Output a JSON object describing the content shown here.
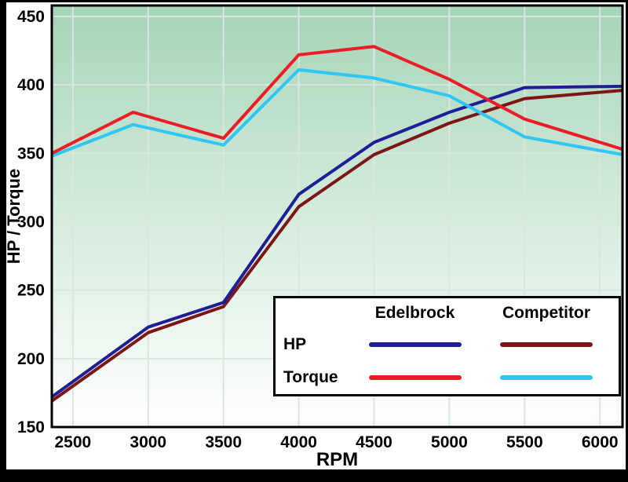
{
  "chart_data": {
    "type": "line",
    "title": "",
    "xlabel": "RPM",
    "ylabel": "HP / Torque",
    "xlim": [
      2360,
      6150
    ],
    "ylim": [
      150,
      458
    ],
    "x_ticks": [
      2500,
      3000,
      3500,
      4000,
      4500,
      5000,
      5500,
      6000
    ],
    "y_ticks": [
      150,
      200,
      250,
      300,
      350,
      400,
      450
    ],
    "grid": true,
    "legend": {
      "position": "bottom-right",
      "columns": [
        "Edelbrock",
        "Competitor"
      ],
      "rows": [
        "HP",
        "Torque"
      ]
    },
    "colors": {
      "hp_edelbrock": "#1e1e96",
      "hp_competitor": "#7b1518",
      "torque_edelbrock": "#ea1c26",
      "torque_competitor": "#2fc6f3",
      "grid": "#d9e7dc",
      "plot_border": "#000000",
      "background_top": "#a5d4b7",
      "background_mid": "#d9eee0",
      "background_bottom": "#ffffff",
      "matte": "#000000",
      "text": "#000000"
    },
    "series": [
      {
        "name": "HP Competitor",
        "metric": "HP",
        "brand": "Competitor",
        "color": "#7b1518",
        "points": [
          [
            2360,
            169
          ],
          [
            3000,
            219
          ],
          [
            3500,
            238
          ],
          [
            4000,
            311
          ],
          [
            4500,
            349
          ],
          [
            5000,
            372
          ],
          [
            5500,
            390
          ],
          [
            6150,
            396
          ]
        ]
      },
      {
        "name": "HP Edelbrock",
        "metric": "HP",
        "brand": "Edelbrock",
        "color": "#1e1e96",
        "points": [
          [
            2360,
            172
          ],
          [
            3000,
            223
          ],
          [
            3500,
            241
          ],
          [
            4000,
            320
          ],
          [
            4500,
            358
          ],
          [
            5000,
            380
          ],
          [
            5500,
            398
          ],
          [
            6150,
            399
          ]
        ]
      },
      {
        "name": "Torque Competitor",
        "metric": "Torque",
        "brand": "Competitor",
        "color": "#2fc6f3",
        "points": [
          [
            2360,
            348
          ],
          [
            2900,
            371
          ],
          [
            3500,
            356
          ],
          [
            4000,
            411
          ],
          [
            4500,
            405
          ],
          [
            5000,
            392
          ],
          [
            5500,
            362
          ],
          [
            6150,
            349
          ]
        ]
      },
      {
        "name": "Torque Edelbrock",
        "metric": "Torque",
        "brand": "Edelbrock",
        "color": "#ea1c26",
        "points": [
          [
            2360,
            350
          ],
          [
            2900,
            380
          ],
          [
            3500,
            361
          ],
          [
            4000,
            422
          ],
          [
            4500,
            428
          ],
          [
            5000,
            404
          ],
          [
            5500,
            375
          ],
          [
            6150,
            353
          ]
        ]
      }
    ]
  }
}
